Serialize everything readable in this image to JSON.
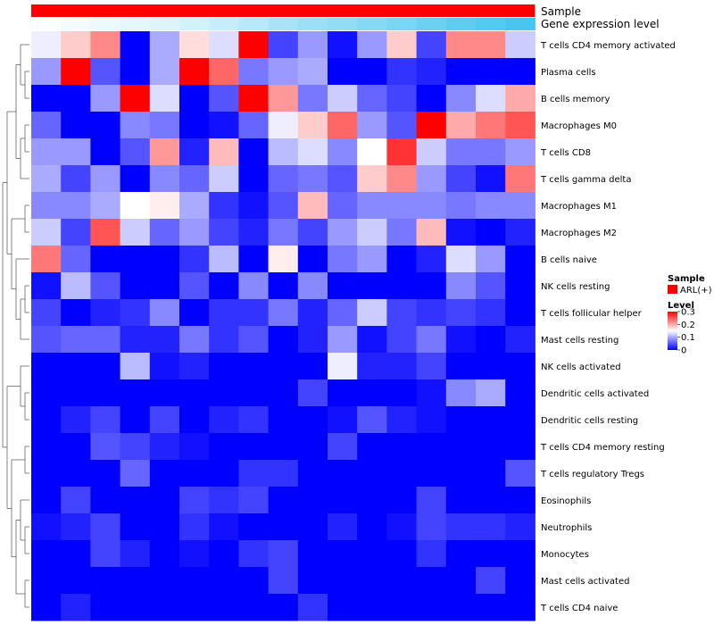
{
  "chart_data": {
    "type": "heatmap",
    "annotations": {
      "sample_label": "Sample",
      "expression_label": "Gene expression level",
      "sample_color": "#ff0000"
    },
    "rows": [
      "T cells CD4 memory activated",
      "Plasma cells",
      "B cells memory",
      "Macrophages M0",
      "T cells CD8",
      "T cells gamma delta",
      "Macrophages M1",
      "Macrophages M2",
      "B cells naive",
      "NK cells resting",
      "T cells follicular helper",
      "Mast cells resting",
      "NK cells activated",
      "Dendritic cells activated",
      "Dendritic cells resting",
      "T cells CD4 memory resting",
      "T cells regulatory  Tregs",
      "Eosinophils",
      "Neutrophils",
      "Monocytes",
      "Mast cells activated",
      "T cells CD4 naive"
    ],
    "values": [
      [
        0.14,
        0.18,
        0.22,
        0.0,
        0.1,
        0.17,
        0.13,
        0.3,
        0.04,
        0.09,
        0.01,
        0.09,
        0.18,
        0.04,
        0.22,
        0.22,
        0.12
      ],
      [
        0.09,
        0.3,
        0.05,
        0.0,
        0.1,
        0.3,
        0.24,
        0.07,
        0.09,
        0.1,
        0.0,
        0.0,
        0.03,
        0.02,
        0.0,
        0.0,
        0.0
      ],
      [
        0.0,
        0.0,
        0.09,
        0.3,
        0.13,
        0.0,
        0.05,
        0.3,
        0.21,
        0.07,
        0.12,
        0.06,
        0.04,
        0.0,
        0.08,
        0.13,
        0.2
      ],
      [
        0.06,
        0.0,
        0.0,
        0.08,
        0.07,
        0.0,
        0.01,
        0.06,
        0.14,
        0.18,
        0.24,
        0.09,
        0.05,
        0.3,
        0.2,
        0.23,
        0.25
      ],
      [
        0.09,
        0.09,
        0.0,
        0.05,
        0.21,
        0.02,
        0.19,
        0.0,
        0.11,
        0.13,
        0.08,
        0.15,
        0.27,
        0.12,
        0.07,
        0.07,
        0.09
      ],
      [
        0.1,
        0.04,
        0.09,
        0.0,
        0.08,
        0.06,
        0.12,
        0.0,
        0.06,
        0.07,
        0.05,
        0.18,
        0.22,
        0.09,
        0.04,
        0.01,
        0.23
      ],
      [
        0.08,
        0.08,
        0.1,
        0.15,
        0.16,
        0.1,
        0.03,
        0.01,
        0.05,
        0.19,
        0.06,
        0.08,
        0.08,
        0.08,
        0.07,
        0.08,
        0.08
      ],
      [
        0.12,
        0.04,
        0.25,
        0.12,
        0.06,
        0.09,
        0.04,
        0.02,
        0.07,
        0.04,
        0.09,
        0.12,
        0.07,
        0.19,
        0.01,
        0.0,
        0.02
      ],
      [
        0.23,
        0.06,
        0.0,
        0.0,
        0.0,
        0.03,
        0.11,
        0.0,
        0.16,
        0.0,
        0.07,
        0.09,
        0.0,
        0.02,
        0.13,
        0.09,
        0.0
      ],
      [
        0.01,
        0.11,
        0.05,
        0.0,
        0.0,
        0.05,
        0.0,
        0.08,
        0.0,
        0.08,
        0.0,
        0.0,
        0.0,
        0.0,
        0.08,
        0.05,
        0.0
      ],
      [
        0.04,
        0.0,
        0.02,
        0.03,
        0.08,
        0.0,
        0.03,
        0.03,
        0.07,
        0.02,
        0.06,
        0.12,
        0.04,
        0.03,
        0.04,
        0.03,
        0.0
      ],
      [
        0.05,
        0.06,
        0.06,
        0.02,
        0.02,
        0.07,
        0.03,
        0.05,
        0.0,
        0.02,
        0.09,
        0.01,
        0.04,
        0.07,
        0.01,
        0.0,
        0.02
      ],
      [
        0.0,
        0.0,
        0.0,
        0.11,
        0.01,
        0.02,
        0.0,
        0.0,
        0.0,
        0.0,
        0.14,
        0.02,
        0.02,
        0.04,
        0.0,
        0.0,
        0.0
      ],
      [
        0.0,
        0.0,
        0.0,
        0.0,
        0.0,
        0.0,
        0.0,
        0.0,
        0.0,
        0.04,
        0.0,
        0.0,
        0.0,
        0.01,
        0.08,
        0.1,
        0.0
      ],
      [
        0.0,
        0.02,
        0.04,
        0.0,
        0.04,
        0.0,
        0.02,
        0.03,
        0.0,
        0.0,
        0.01,
        0.05,
        0.02,
        0.01,
        0.0,
        0.0,
        0.0
      ],
      [
        0.0,
        0.0,
        0.05,
        0.04,
        0.02,
        0.01,
        0.0,
        0.0,
        0.0,
        0.0,
        0.04,
        0.0,
        0.0,
        0.0,
        0.0,
        0.0,
        0.0
      ],
      [
        0.0,
        0.0,
        0.0,
        0.06,
        0.0,
        0.0,
        0.0,
        0.03,
        0.03,
        0.0,
        0.0,
        0.0,
        0.0,
        0.0,
        0.0,
        0.0,
        0.05
      ],
      [
        0.0,
        0.04,
        0.0,
        0.0,
        0.0,
        0.04,
        0.03,
        0.04,
        0.0,
        0.0,
        0.0,
        0.0,
        0.0,
        0.04,
        0.0,
        0.0,
        0.0
      ],
      [
        0.01,
        0.02,
        0.04,
        0.0,
        0.0,
        0.03,
        0.01,
        0.0,
        0.0,
        0.0,
        0.02,
        0.0,
        0.01,
        0.04,
        0.03,
        0.03,
        0.02
      ],
      [
        0.0,
        0.0,
        0.04,
        0.02,
        0.0,
        0.01,
        0.0,
        0.03,
        0.04,
        0.0,
        0.0,
        0.0,
        0.0,
        0.03,
        0.0,
        0.0,
        0.0
      ],
      [
        0.0,
        0.0,
        0.0,
        0.0,
        0.0,
        0.0,
        0.0,
        0.0,
        0.04,
        0.0,
        0.0,
        0.0,
        0.0,
        0.0,
        0.0,
        0.04,
        0.0
      ],
      [
        0.0,
        0.02,
        0.0,
        0.0,
        0.0,
        0.0,
        0.0,
        0.0,
        0.0,
        0.03,
        0.0,
        0.0,
        0.0,
        0.0,
        0.0,
        0.0,
        0.0
      ]
    ],
    "expression_gradient": [
      0.02,
      0.06,
      0.1,
      0.14,
      0.18,
      0.24,
      0.3,
      0.38,
      0.46,
      0.52,
      0.58,
      0.64,
      0.7,
      0.78,
      0.84,
      0.9,
      0.96
    ],
    "legend": {
      "sample_title": "Sample",
      "sample_entry": "ARL(+)",
      "level_title": "Level",
      "level_ticks": [
        0.3,
        0.2,
        0.1,
        0
      ],
      "level_tick_labels": [
        "0.3",
        "0.2",
        "0.1",
        "0"
      ],
      "range": [
        0,
        0.3
      ]
    },
    "colors": {
      "low": "#0000ff",
      "mid": "#ffffff",
      "high": "#ff0000",
      "expr_low": "#ffffff",
      "expr_high": "#40c4f0"
    }
  }
}
